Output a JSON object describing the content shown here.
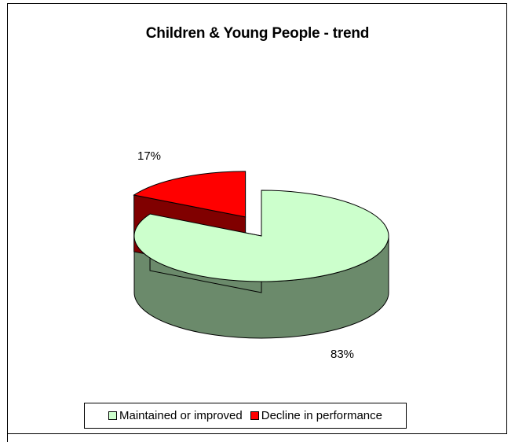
{
  "chart_data": {
    "type": "pie",
    "title": "Children & Young People - trend",
    "categories": [
      "Maintained or improved",
      "Decline in performance"
    ],
    "values": [
      83,
      17
    ],
    "data_labels": [
      "83%",
      "17%"
    ],
    "colors": [
      "#ccffcc",
      "#ff0000"
    ],
    "side_colors": [
      "#6b8a6b",
      "#800000"
    ],
    "exploded": "Decline in performance",
    "three_d": true,
    "legend_position": "bottom"
  }
}
